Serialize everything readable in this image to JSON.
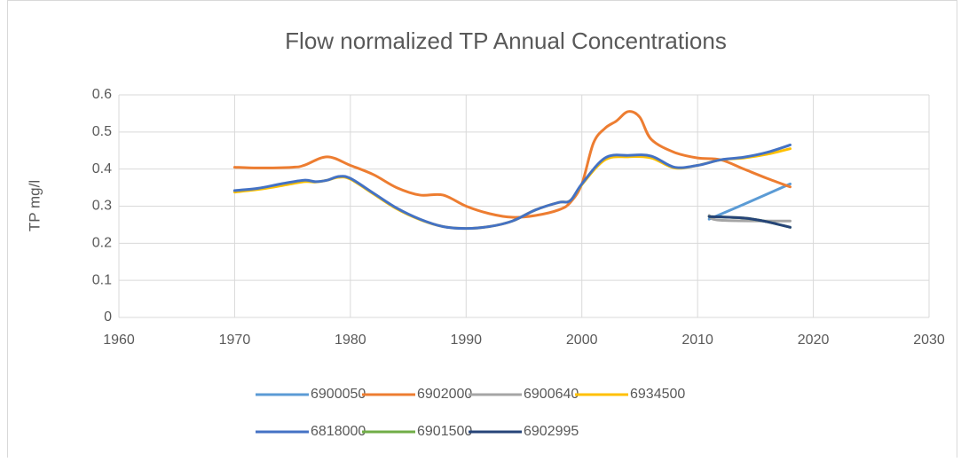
{
  "chart_data": {
    "type": "line",
    "title": "Flow normalized TP Annual Concentrations",
    "y_label": "TP mg/l",
    "xlim": [
      1960,
      2030
    ],
    "xticks": [
      1960,
      1970,
      1980,
      1990,
      2000,
      2010,
      2020,
      2030
    ],
    "ylim": [
      0,
      0.6
    ],
    "yticks": [
      0,
      0.1,
      0.2,
      0.3,
      0.4,
      0.5,
      0.6
    ],
    "grid": true,
    "legend": "bottom",
    "smooth": true,
    "series": [
      {
        "name": "6900050",
        "color": "#5b9bd5",
        "x": [
          2011,
          2014,
          2018
        ],
        "values": [
          0.265,
          0.305,
          0.36
        ]
      },
      {
        "name": "6902000",
        "color": "#ed7d31",
        "x": [
          1970,
          1972,
          1975,
          1976,
          1978,
          1980,
          1982,
          1984,
          1986,
          1988,
          1990,
          1992,
          1994,
          1996,
          1998,
          1999,
          2000,
          2001,
          2002,
          2003,
          2004,
          2005,
          2006,
          2008,
          2010,
          2012,
          2014,
          2016,
          2018
        ],
        "values": [
          0.405,
          0.403,
          0.405,
          0.41,
          0.433,
          0.41,
          0.385,
          0.35,
          0.33,
          0.33,
          0.3,
          0.28,
          0.27,
          0.275,
          0.29,
          0.31,
          0.36,
          0.47,
          0.51,
          0.53,
          0.555,
          0.54,
          0.48,
          0.445,
          0.43,
          0.425,
          0.4,
          0.375,
          0.352
        ]
      },
      {
        "name": "6900640",
        "color": "#a5a5a5",
        "x": [
          2011,
          2012,
          2018
        ],
        "values": [
          0.275,
          0.262,
          0.26
        ]
      },
      {
        "name": "6934500",
        "color": "#ffc000",
        "x": [
          1970,
          1972,
          1974,
          1976,
          1977,
          1978,
          1979,
          1980,
          1982,
          1984,
          1986,
          1988,
          1990,
          1992,
          1994,
          1996,
          1998,
          1999,
          2000,
          2002,
          2004,
          2006,
          2008,
          2010,
          2012,
          2014,
          2016,
          2018
        ],
        "values": [
          0.338,
          0.345,
          0.355,
          0.366,
          0.365,
          0.37,
          0.378,
          0.373,
          0.333,
          0.293,
          0.264,
          0.245,
          0.24,
          0.245,
          0.26,
          0.29,
          0.31,
          0.315,
          0.358,
          0.425,
          0.433,
          0.43,
          0.403,
          0.41,
          0.425,
          0.43,
          0.44,
          0.455
        ]
      },
      {
        "name": "6818000",
        "color": "#4472c4",
        "x": [
          1970,
          1972,
          1974,
          1976,
          1977,
          1978,
          1979,
          1980,
          1982,
          1984,
          1986,
          1988,
          1990,
          1992,
          1994,
          1996,
          1998,
          1999,
          2000,
          2002,
          2004,
          2006,
          2008,
          2010,
          2012,
          2014,
          2016,
          2018
        ],
        "values": [
          0.342,
          0.348,
          0.36,
          0.37,
          0.366,
          0.37,
          0.38,
          0.375,
          0.335,
          0.295,
          0.265,
          0.245,
          0.24,
          0.245,
          0.26,
          0.29,
          0.31,
          0.315,
          0.36,
          0.43,
          0.437,
          0.435,
          0.405,
          0.41,
          0.425,
          0.432,
          0.445,
          0.465
        ]
      },
      {
        "name": "6901500",
        "color": "#70ad47",
        "x": [
          2011,
          2014,
          2016,
          2018
        ],
        "values": [
          0.272,
          0.268,
          0.258,
          0.243
        ]
      },
      {
        "name": "6902995",
        "color": "#264478",
        "x": [
          2011,
          2014,
          2016,
          2018
        ],
        "values": [
          0.272,
          0.268,
          0.258,
          0.243
        ]
      }
    ]
  }
}
